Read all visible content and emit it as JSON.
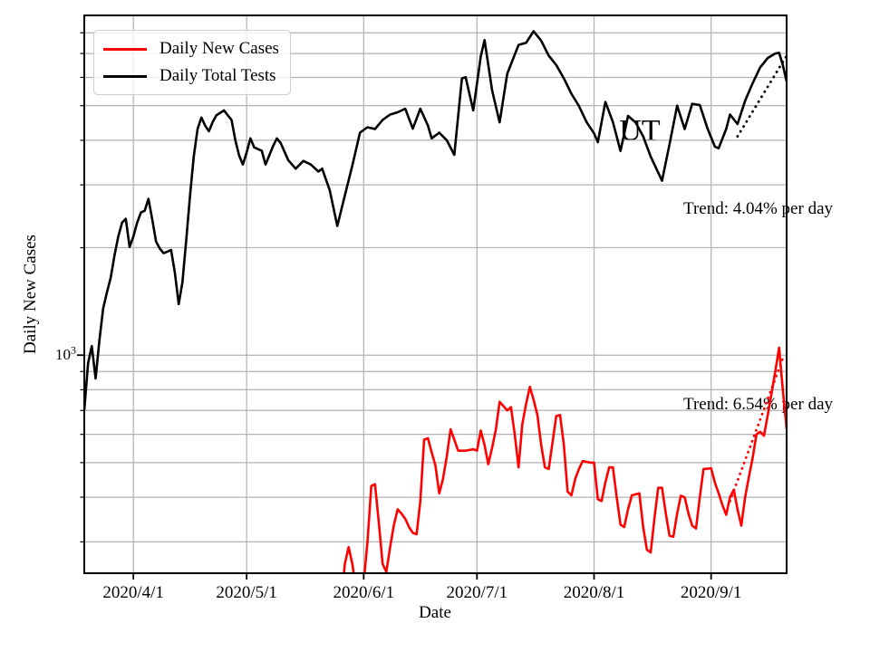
{
  "chart_data": {
    "type": "line",
    "state_label": "UT",
    "xlabel": "Date",
    "ylabel": "Daily New Cases",
    "yscale": "log",
    "grid": "both",
    "grid_color": "#b3b3b3",
    "legend_position": "upper-left",
    "year": 2020,
    "xrange": [
      "3/19",
      "9/21"
    ],
    "ylim": [
      245,
      8950
    ],
    "x_tick_labels": [
      "2020/4/1",
      "2020/5/1",
      "2020/6/1",
      "2020/7/1",
      "2020/8/1",
      "2020/9/1"
    ],
    "y_tick": {
      "value": 1000,
      "base": "10",
      "exponent": "3"
    },
    "series": [
      {
        "name": "Daily New Cases",
        "color": "#ff0000",
        "points": [
          [
            "5/26",
            200
          ],
          [
            "5/27",
            260
          ],
          [
            "5/28",
            290
          ],
          [
            "5/29",
            260
          ],
          [
            "5/30",
            220
          ],
          [
            "5/31",
            190
          ],
          [
            "6/1",
            230
          ],
          [
            "6/2",
            300
          ],
          [
            "6/3",
            430
          ],
          [
            "6/4",
            435
          ],
          [
            "6/5",
            340
          ],
          [
            "6/6",
            260
          ],
          [
            "6/7",
            247
          ],
          [
            "6/8",
            290
          ],
          [
            "6/9",
            335
          ],
          [
            "6/10",
            370
          ],
          [
            "6/11",
            360
          ],
          [
            "6/12",
            348
          ],
          [
            "6/13",
            330
          ],
          [
            "6/14",
            318
          ],
          [
            "6/15",
            315
          ],
          [
            "6/16",
            390
          ],
          [
            "6/17",
            580
          ],
          [
            "6/18",
            585
          ],
          [
            "6/19",
            535
          ],
          [
            "6/20",
            490
          ],
          [
            "6/21",
            410
          ],
          [
            "6/22",
            450
          ],
          [
            "6/23",
            520
          ],
          [
            "6/24",
            620
          ],
          [
            "6/25",
            580
          ],
          [
            "6/26",
            540
          ],
          [
            "6/28",
            540
          ],
          [
            "6/30",
            545
          ],
          [
            "7/1",
            540
          ],
          [
            "7/2",
            615
          ],
          [
            "7/3",
            560
          ],
          [
            "7/4",
            495
          ],
          [
            "7/5",
            550
          ],
          [
            "7/6",
            620
          ],
          [
            "7/7",
            740
          ],
          [
            "7/8",
            720
          ],
          [
            "7/9",
            700
          ],
          [
            "7/10",
            715
          ],
          [
            "7/11",
            600
          ],
          [
            "7/12",
            485
          ],
          [
            "7/13",
            640
          ],
          [
            "7/14",
            730
          ],
          [
            "7/15",
            815
          ],
          [
            "7/16",
            750
          ],
          [
            "7/17",
            680
          ],
          [
            "7/18",
            560
          ],
          [
            "7/19",
            485
          ],
          [
            "7/20",
            480
          ],
          [
            "7/21",
            570
          ],
          [
            "7/22",
            675
          ],
          [
            "7/23",
            680
          ],
          [
            "7/24",
            560
          ],
          [
            "7/25",
            415
          ],
          [
            "7/26",
            405
          ],
          [
            "7/27",
            450
          ],
          [
            "7/28",
            480
          ],
          [
            "7/29",
            505
          ],
          [
            "7/31",
            500
          ],
          [
            "8/1",
            500
          ],
          [
            "8/2",
            395
          ],
          [
            "8/3",
            390
          ],
          [
            "8/4",
            440
          ],
          [
            "8/5",
            485
          ],
          [
            "8/6",
            485
          ],
          [
            "8/7",
            400
          ],
          [
            "8/8",
            335
          ],
          [
            "8/9",
            330
          ],
          [
            "8/10",
            370
          ],
          [
            "8/11",
            405
          ],
          [
            "8/13",
            410
          ],
          [
            "8/14",
            330
          ],
          [
            "8/15",
            285
          ],
          [
            "8/16",
            280
          ],
          [
            "8/17",
            350
          ],
          [
            "8/18",
            425
          ],
          [
            "8/19",
            425
          ],
          [
            "8/20",
            360
          ],
          [
            "8/21",
            312
          ],
          [
            "8/22",
            310
          ],
          [
            "8/23",
            360
          ],
          [
            "8/24",
            404
          ],
          [
            "8/25",
            400
          ],
          [
            "8/26",
            360
          ],
          [
            "8/27",
            333
          ],
          [
            "8/28",
            327
          ],
          [
            "8/29",
            400
          ],
          [
            "8/30",
            480
          ],
          [
            "9/1",
            482
          ],
          [
            "9/2",
            440
          ],
          [
            "9/3",
            410
          ],
          [
            "9/4",
            380
          ],
          [
            "9/5",
            357
          ],
          [
            "9/6",
            400
          ],
          [
            "9/7",
            420
          ],
          [
            "9/8",
            370
          ],
          [
            "9/9",
            333
          ],
          [
            "9/10",
            400
          ],
          [
            "9/11",
            455
          ],
          [
            "9/12",
            515
          ],
          [
            "9/13",
            600
          ],
          [
            "9/14",
            610
          ],
          [
            "9/15",
            595
          ],
          [
            "9/16",
            680
          ],
          [
            "9/17",
            780
          ],
          [
            "9/18",
            900
          ],
          [
            "9/19",
            1050
          ],
          [
            "9/20",
            800
          ],
          [
            "9/21",
            620
          ]
        ]
      },
      {
        "name": "Daily Total Tests",
        "color": "#000000",
        "points": [
          [
            "3/19",
            700
          ],
          [
            "3/20",
            950
          ],
          [
            "3/21",
            1060
          ],
          [
            "3/22",
            860
          ],
          [
            "3/23",
            1100
          ],
          [
            "3/24",
            1350
          ],
          [
            "3/25",
            1500
          ],
          [
            "3/26",
            1650
          ],
          [
            "3/27",
            1900
          ],
          [
            "3/28",
            2150
          ],
          [
            "3/29",
            2350
          ],
          [
            "3/30",
            2410
          ],
          [
            "3/31",
            2010
          ],
          [
            "4/1",
            2150
          ],
          [
            "4/2",
            2350
          ],
          [
            "4/3",
            2510
          ],
          [
            "4/4",
            2540
          ],
          [
            "4/5",
            2740
          ],
          [
            "4/6",
            2400
          ],
          [
            "4/7",
            2080
          ],
          [
            "4/8",
            1990
          ],
          [
            "4/9",
            1930
          ],
          [
            "4/10",
            1950
          ],
          [
            "4/11",
            1970
          ],
          [
            "4/12",
            1700
          ],
          [
            "4/13",
            1390
          ],
          [
            "4/14",
            1600
          ],
          [
            "4/15",
            2100
          ],
          [
            "4/16",
            2800
          ],
          [
            "4/17",
            3600
          ],
          [
            "4/18",
            4300
          ],
          [
            "4/19",
            4630
          ],
          [
            "4/20",
            4400
          ],
          [
            "4/21",
            4240
          ],
          [
            "4/22",
            4500
          ],
          [
            "4/23",
            4700
          ],
          [
            "4/25",
            4850
          ],
          [
            "4/26",
            4700
          ],
          [
            "4/27",
            4560
          ],
          [
            "4/28",
            4000
          ],
          [
            "4/29",
            3630
          ],
          [
            "4/30",
            3420
          ],
          [
            "5/1",
            3700
          ],
          [
            "5/2",
            4050
          ],
          [
            "5/3",
            3820
          ],
          [
            "5/5",
            3740
          ],
          [
            "5/6",
            3420
          ],
          [
            "5/8",
            3850
          ],
          [
            "5/9",
            4050
          ],
          [
            "5/10",
            3930
          ],
          [
            "5/12",
            3520
          ],
          [
            "5/14",
            3330
          ],
          [
            "5/16",
            3500
          ],
          [
            "5/18",
            3420
          ],
          [
            "5/20",
            3270
          ],
          [
            "5/21",
            3330
          ],
          [
            "5/23",
            2900
          ],
          [
            "5/25",
            2300
          ],
          [
            "5/27",
            2800
          ],
          [
            "5/29",
            3400
          ],
          [
            "5/31",
            4200
          ],
          [
            "6/2",
            4350
          ],
          [
            "6/4",
            4300
          ],
          [
            "6/6",
            4560
          ],
          [
            "6/8",
            4720
          ],
          [
            "6/10",
            4790
          ],
          [
            "6/12",
            4900
          ],
          [
            "6/14",
            4310
          ],
          [
            "6/16",
            4900
          ],
          [
            "6/18",
            4400
          ],
          [
            "6/19",
            4050
          ],
          [
            "6/21",
            4200
          ],
          [
            "6/23",
            4000
          ],
          [
            "6/25",
            3640
          ],
          [
            "6/27",
            5960
          ],
          [
            "6/28",
            6010
          ],
          [
            "6/30",
            4850
          ],
          [
            "7/2",
            6870
          ],
          [
            "7/3",
            7630
          ],
          [
            "7/5",
            5520
          ],
          [
            "7/7",
            4490
          ],
          [
            "7/9",
            6140
          ],
          [
            "7/12",
            7400
          ],
          [
            "7/14",
            7500
          ],
          [
            "7/16",
            8080
          ],
          [
            "7/18",
            7600
          ],
          [
            "7/20",
            6900
          ],
          [
            "7/22",
            6500
          ],
          [
            "7/24",
            5960
          ],
          [
            "7/26",
            5400
          ],
          [
            "7/28",
            4990
          ],
          [
            "7/30",
            4500
          ],
          [
            "8/1",
            4180
          ],
          [
            "8/2",
            3950
          ],
          [
            "8/4",
            5120
          ],
          [
            "8/6",
            4500
          ],
          [
            "8/8",
            3730
          ],
          [
            "8/10",
            4680
          ],
          [
            "8/12",
            4490
          ],
          [
            "8/14",
            4100
          ],
          [
            "8/16",
            3600
          ],
          [
            "8/19",
            3080
          ],
          [
            "8/21",
            3900
          ],
          [
            "8/23",
            5000
          ],
          [
            "8/25",
            4300
          ],
          [
            "8/27",
            5060
          ],
          [
            "8/29",
            5020
          ],
          [
            "8/31",
            4330
          ],
          [
            "9/2",
            3840
          ],
          [
            "9/3",
            3800
          ],
          [
            "9/5",
            4300
          ],
          [
            "9/6",
            4720
          ],
          [
            "9/8",
            4440
          ],
          [
            "9/10",
            5160
          ],
          [
            "9/12",
            5780
          ],
          [
            "9/14",
            6400
          ],
          [
            "9/16",
            6800
          ],
          [
            "9/18",
            7000
          ],
          [
            "9/19",
            7030
          ],
          [
            "9/20",
            6500
          ],
          [
            "9/21",
            5850
          ]
        ]
      }
    ],
    "trend_lines": [
      {
        "name": "tests-trend",
        "label": "Trend: 4.04% per day",
        "color": "#000000",
        "style": "dotted",
        "start": [
          "9/8",
          4100
        ],
        "end": [
          "9/21",
          6900
        ]
      },
      {
        "name": "cases-trend",
        "label": "Trend: 6.54% per day",
        "color": "#ff0000",
        "style": "dotted",
        "start": [
          "9/6",
          390
        ],
        "end": [
          "9/20",
          980
        ]
      }
    ]
  }
}
